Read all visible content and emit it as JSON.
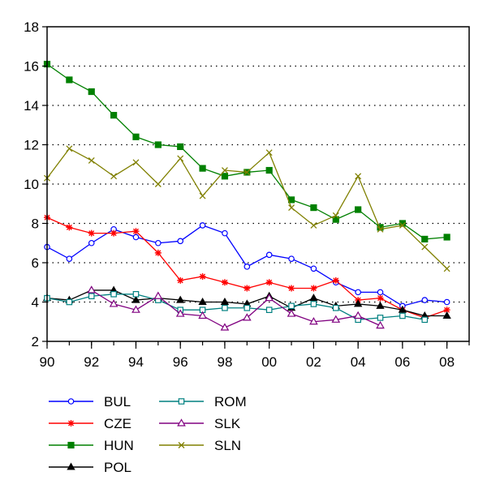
{
  "chart_data": {
    "type": "line",
    "x": [
      1990,
      1991,
      1992,
      1993,
      1994,
      1995,
      1996,
      1997,
      1998,
      1999,
      2000,
      2001,
      2002,
      2003,
      2004,
      2005,
      2006,
      2007,
      2008
    ],
    "x_tick_labels": [
      "90",
      "92",
      "94",
      "96",
      "98",
      "00",
      "02",
      "04",
      "06",
      "08"
    ],
    "x_tick_values": [
      1990,
      1992,
      1994,
      1996,
      1998,
      2000,
      2002,
      2004,
      2006,
      2008
    ],
    "xlim": [
      1990,
      2009
    ],
    "ylim": [
      2,
      18
    ],
    "y_ticks": [
      2,
      4,
      6,
      8,
      10,
      12,
      14,
      16,
      18
    ],
    "grid": "horizontal dotted",
    "legend_position": "bottom",
    "series": [
      {
        "name": "BUL",
        "color": "#0000ff",
        "marker": "circle-open",
        "values": [
          6.8,
          6.2,
          7.0,
          7.7,
          7.3,
          7.0,
          7.1,
          7.9,
          7.5,
          5.8,
          6.4,
          6.2,
          5.7,
          5.0,
          4.5,
          4.5,
          3.8,
          4.1,
          4.0
        ]
      },
      {
        "name": "CZE",
        "color": "#ff0000",
        "marker": "star",
        "values": [
          8.3,
          7.8,
          7.5,
          7.5,
          7.6,
          6.5,
          5.1,
          5.3,
          5.0,
          4.7,
          5.0,
          4.7,
          4.7,
          5.1,
          4.1,
          4.2,
          3.6,
          3.2,
          3.6
        ]
      },
      {
        "name": "HUN",
        "color": "#008000",
        "marker": "square-filled",
        "values": [
          16.1,
          15.3,
          14.7,
          13.5,
          12.4,
          12.0,
          11.9,
          10.8,
          10.4,
          10.6,
          10.7,
          9.2,
          8.8,
          8.2,
          8.7,
          7.8,
          8.0,
          7.2,
          7.3
        ]
      },
      {
        "name": "POL",
        "color": "#000000",
        "marker": "triangle-filled",
        "values": [
          4.2,
          4.1,
          4.6,
          4.6,
          4.1,
          4.2,
          4.1,
          4.0,
          4.0,
          3.9,
          4.3,
          3.7,
          4.2,
          3.8,
          3.9,
          3.8,
          3.6,
          3.3,
          3.3
        ]
      },
      {
        "name": "ROM",
        "color": "#008080",
        "marker": "square-open",
        "values": [
          4.2,
          4.0,
          4.3,
          4.4,
          4.4,
          4.1,
          3.6,
          3.6,
          3.7,
          3.7,
          3.6,
          3.8,
          3.9,
          3.7,
          3.1,
          3.2,
          3.3,
          3.1,
          null
        ]
      },
      {
        "name": "SLK",
        "color": "#800080",
        "marker": "triangle-open",
        "values": [
          null,
          null,
          4.6,
          3.9,
          3.6,
          4.3,
          3.4,
          3.3,
          2.7,
          3.2,
          4.2,
          3.4,
          3.0,
          3.1,
          3.3,
          2.8,
          null,
          null,
          null
        ]
      },
      {
        "name": "SLN",
        "color": "#808000",
        "marker": "x",
        "values": [
          10.3,
          11.8,
          11.2,
          10.4,
          11.1,
          10.0,
          11.3,
          9.4,
          10.7,
          10.6,
          11.6,
          8.8,
          7.9,
          8.4,
          10.4,
          7.7,
          7.9,
          6.8,
          5.7
        ]
      }
    ]
  }
}
